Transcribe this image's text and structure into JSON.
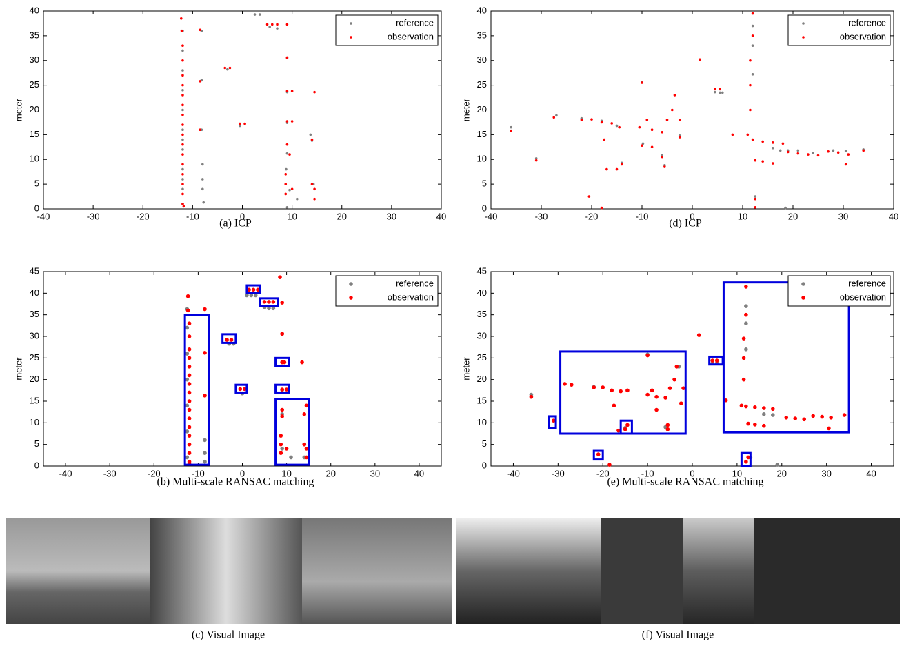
{
  "chart_data": [
    {
      "type": "scatter",
      "caption": "(a)  ICP",
      "ylabel": "meter",
      "xlim": [
        -40,
        40
      ],
      "ylim": [
        0,
        40
      ],
      "xticks": [
        -40,
        -30,
        -20,
        -10,
        0,
        10,
        20,
        30,
        40
      ],
      "yticks": [
        0,
        5,
        10,
        15,
        20,
        25,
        30,
        35,
        40
      ],
      "legend": "upper right",
      "series": [
        {
          "name": "reference",
          "color": "#808080",
          "x": [
            -12,
            -12,
            -12,
            -12,
            -12,
            -12,
            -12,
            -12,
            -12,
            -12,
            -12,
            -12,
            -8.2,
            -8.2,
            -8.2,
            -8,
            -8,
            -8,
            -7.8,
            -3,
            -0.5,
            2.5,
            3.5,
            5.5,
            7,
            9,
            9,
            9,
            9,
            8.8,
            9.5,
            11,
            13.7,
            14,
            14.3,
            9
          ],
          "y": [
            1,
            4,
            8,
            12,
            16,
            20,
            24,
            28,
            32,
            36,
            6,
            14,
            36,
            26,
            16,
            9,
            6,
            4,
            1.3,
            28.2,
            16.8,
            39.3,
            39.3,
            36.8,
            36.5,
            30.5,
            23.6,
            17.4,
            11.2,
            8,
            3.8,
            2,
            15,
            13.8,
            5,
            0.3
          ]
        },
        {
          "name": "observation",
          "color": "#ff0000",
          "x": [
            -12,
            -12,
            -12,
            -12,
            -12,
            -12,
            -12,
            -12,
            -12,
            -12,
            -12,
            -12,
            -12,
            -12,
            -12,
            -12,
            -12.2,
            -12.3,
            -11.8,
            -8.5,
            -8.5,
            -8.5,
            -3.5,
            -2.5,
            -0.5,
            0.5,
            5,
            6,
            7,
            9,
            9,
            9,
            10,
            9,
            10,
            8.7,
            8.7,
            8.7,
            9.5,
            9,
            10,
            14.5,
            14,
            14.5,
            14.5,
            14
          ],
          "y": [
            1,
            3,
            5,
            7,
            9,
            11,
            13,
            15,
            17,
            19,
            21,
            23,
            25,
            27,
            30,
            33,
            36,
            38.5,
            0.5,
            25.8,
            36.2,
            16,
            28.5,
            28.5,
            17.2,
            17.2,
            37.3,
            37.3,
            37.3,
            37.3,
            30.6,
            23.8,
            23.8,
            17.7,
            17.7,
            5,
            3,
            7,
            11,
            13,
            4,
            23.6,
            14,
            2,
            4,
            5
          ]
        }
      ]
    },
    {
      "type": "scatter",
      "caption": "(b)  Multi-scale RANSAC matching",
      "ylabel": "meter",
      "xlim": [
        -45,
        45
      ],
      "ylim": [
        0,
        45
      ],
      "xticks": [
        -40,
        -30,
        -20,
        -10,
        0,
        10,
        20,
        30,
        40
      ],
      "yticks": [
        0,
        5,
        10,
        15,
        20,
        25,
        30,
        35,
        40,
        45
      ],
      "legend": "upper right",
      "series": [
        {
          "name": "reference",
          "color": "#808080",
          "x": [
            -12.5,
            -12.5,
            -12.5,
            -12.5,
            -12.5,
            -12.5,
            -12.5,
            -8.5,
            -8.5,
            -8.5,
            -3,
            -2,
            0,
            1,
            2,
            3,
            5,
            6,
            7,
            9,
            9,
            9,
            9,
            9,
            11,
            14,
            14
          ],
          "y": [
            2,
            8,
            14,
            20,
            26,
            32,
            36.3,
            1,
            3,
            6,
            28.3,
            28.3,
            16.8,
            39.5,
            39.5,
            39.5,
            36.7,
            36.5,
            36.5,
            30.6,
            24,
            17.6,
            12,
            4,
            2,
            5,
            2
          ]
        },
        {
          "name": "observation",
          "color": "#ff0000",
          "x": [
            -12,
            -12,
            -12,
            -12,
            -12,
            -12,
            -12,
            -12,
            -12,
            -12,
            -12,
            -12,
            -12,
            -12,
            -12,
            -12,
            -12.3,
            -12.3,
            -12,
            -8.5,
            -8.5,
            -8.5,
            -3.5,
            -2.5,
            -0.5,
            0.5,
            1.5,
            2.5,
            3.5,
            5,
            6,
            7,
            8.5,
            9,
            9,
            9,
            9.5,
            9,
            10,
            8.7,
            8.7,
            8.7,
            9,
            9,
            10,
            13.5,
            14.5,
            14,
            14.5,
            14.5,
            14
          ],
          "y": [
            1,
            3,
            5,
            7,
            9,
            11,
            13,
            15,
            17,
            19,
            21,
            23,
            25,
            27,
            30,
            33,
            36,
            39.3,
            0.5,
            26.2,
            36.3,
            16.3,
            29.2,
            29.2,
            17.8,
            17.8,
            40.8,
            40.8,
            40.8,
            38,
            38,
            38,
            43.7,
            37.8,
            30.6,
            24,
            24,
            17.7,
            17.7,
            5,
            3,
            7,
            11.5,
            13,
            4,
            24,
            14,
            12,
            2,
            4,
            5
          ]
        }
      ],
      "boxes": [
        [
          -13,
          0.3,
          -7.5,
          35
        ],
        [
          -4.5,
          28.5,
          -1.5,
          30.5
        ],
        [
          -1.5,
          17,
          1,
          18.8
        ],
        [
          1,
          40,
          4,
          41.8
        ],
        [
          4,
          37,
          8,
          38.8
        ],
        [
          7.5,
          23.2,
          10.5,
          25
        ],
        [
          7.5,
          17,
          10.5,
          18.8
        ],
        [
          7.5,
          0.3,
          15,
          15.5
        ]
      ]
    },
    {
      "type": "scatter",
      "caption": "(d)  ICP",
      "ylabel": "meter",
      "xlim": [
        -40,
        40
      ],
      "ylim": [
        0,
        40
      ],
      "xticks": [
        -40,
        -30,
        -20,
        -10,
        0,
        10,
        20,
        30,
        40
      ],
      "yticks": [
        0,
        5,
        10,
        15,
        20,
        25,
        30,
        35,
        40
      ],
      "legend": "upper right",
      "series": [
        {
          "name": "reference",
          "color": "#808080",
          "x": [
            -36,
            -31,
            -27,
            -22,
            -18,
            -15,
            -14,
            -10,
            -9.8,
            -6,
            -5.5,
            -2.5,
            4.5,
            5.5,
            6,
            12,
            12,
            12,
            12.5,
            16,
            17.5,
            19,
            21,
            24,
            28,
            30.5,
            34,
            18.5
          ],
          "y": [
            16.5,
            10.2,
            18.9,
            18.3,
            17.8,
            16.8,
            9.3,
            25.6,
            13.2,
            10.8,
            8.8,
            14.8,
            23.6,
            23.5,
            23.5,
            37,
            33,
            27.2,
            2.5,
            12.3,
            11.8,
            11.8,
            11.8,
            11.3,
            11.8,
            11.7,
            12,
            0.2
          ]
        },
        {
          "name": "observation",
          "color": "#ff0000",
          "x": [
            -36,
            -31,
            -27.5,
            -22,
            -20,
            -18,
            -16,
            -14.5,
            -17.5,
            -15,
            -14,
            -17,
            -20.5,
            -18,
            -10.5,
            -9,
            -8,
            -6,
            -5,
            -4,
            -3.5,
            -10,
            -10,
            -8,
            -6,
            -5.5,
            -2.5,
            -2.5,
            1.5,
            4.5,
            5.5,
            8,
            11,
            11.5,
            11.5,
            11.5,
            12,
            12,
            12,
            14,
            16,
            18,
            12.5,
            14,
            16,
            12.5,
            12.5,
            19,
            21,
            23,
            25,
            27,
            29,
            31,
            30.5,
            34
          ],
          "y": [
            15.8,
            9.8,
            18.5,
            18,
            18.1,
            17.5,
            17.3,
            16.5,
            14,
            8,
            9,
            8,
            2.5,
            0.2,
            16.5,
            18,
            16,
            15.5,
            18,
            20,
            23,
            25.5,
            12.8,
            12.5,
            10.5,
            8.5,
            14.5,
            18,
            30.2,
            24.2,
            24.2,
            15,
            15,
            20,
            25,
            30,
            35,
            39.5,
            14,
            13.6,
            13.4,
            13.2,
            9.8,
            9.6,
            9.2,
            2,
            0.3,
            11.5,
            11.2,
            11,
            10.8,
            11.6,
            11.4,
            11,
            9,
            11.8
          ]
        }
      ]
    },
    {
      "type": "scatter",
      "caption": "(e)  Multi-scale RANSAC matching",
      "ylabel": "meter",
      "xlim": [
        -45,
        45
      ],
      "ylim": [
        0,
        45
      ],
      "xticks": [
        -40,
        -30,
        -20,
        -10,
        0,
        10,
        20,
        30,
        40
      ],
      "yticks": [
        0,
        5,
        10,
        15,
        20,
        25,
        30,
        35,
        40,
        45
      ],
      "legend": "upper right",
      "series": [
        {
          "name": "reference",
          "color": "#808080",
          "x": [
            -36,
            -31,
            -22,
            -15,
            -10,
            -6,
            -3,
            4.5,
            5.5,
            12,
            12,
            12,
            13,
            16,
            18,
            19
          ],
          "y": [
            16.5,
            10.5,
            18.3,
            8.8,
            25.8,
            9,
            23,
            23.8,
            23.8,
            37,
            33,
            27,
            2,
            12,
            11.8,
            0.3
          ]
        },
        {
          "name": "observation",
          "color": "#ff0000",
          "x": [
            -36,
            -31,
            -28.5,
            -27,
            -22,
            -20,
            -18,
            -16,
            -14.5,
            -17.5,
            -15,
            -14.5,
            -16.5,
            -21,
            -18.5,
            -10,
            -9,
            -8,
            -6,
            -5,
            -4,
            -3.5,
            -5.5,
            -10,
            -8,
            -5.5,
            -2.5,
            -2,
            1.5,
            4.5,
            5.5,
            7.5,
            11,
            11.5,
            11.5,
            11.5,
            12,
            12,
            12,
            14,
            16,
            18,
            12.5,
            14,
            16,
            12.5,
            12,
            21,
            23,
            25,
            27,
            29,
            31,
            30.5,
            34
          ],
          "y": [
            16,
            10.5,
            19,
            18.8,
            18.2,
            18.2,
            17.5,
            17.3,
            17.5,
            14,
            8.5,
            9.5,
            8.2,
            2.7,
            0.3,
            25.6,
            17.5,
            16,
            15.8,
            18,
            20,
            23,
            9.5,
            16.5,
            13,
            8.5,
            14.5,
            18,
            30.3,
            24.4,
            24.4,
            15.2,
            14,
            20,
            25,
            29.5,
            35,
            41.5,
            13.8,
            13.6,
            13.4,
            13.2,
            9.8,
            9.6,
            9.3,
            2,
            1,
            11.2,
            11,
            10.8,
            11.6,
            11.4,
            11.2,
            8.7,
            11.8
          ]
        }
      ],
      "boxes": [
        [
          -29.5,
          7.5,
          -1.5,
          26.5
        ],
        [
          -32,
          8.8,
          -30.5,
          11.5
        ],
        [
          -16,
          7.5,
          -13.5,
          10.5
        ],
        [
          -22,
          1.5,
          -20,
          3.5
        ],
        [
          3.8,
          23.5,
          6.8,
          25.3
        ],
        [
          7,
          7.8,
          35,
          42.5
        ],
        [
          11,
          0,
          13,
          3
        ]
      ]
    }
  ],
  "images": [
    {
      "caption": "(c)  Visual Image"
    },
    {
      "caption": "(f)  Visual Image"
    }
  ]
}
